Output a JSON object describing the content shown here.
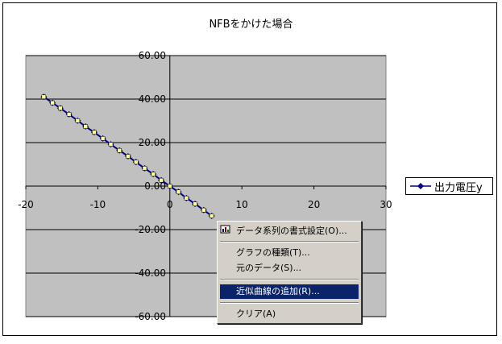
{
  "chart_data": {
    "type": "scatter",
    "title": "NFBをかけた場合",
    "xlim": [
      -20,
      30
    ],
    "ylim": [
      -60,
      60
    ],
    "x_ticks": [
      "-20",
      "-10",
      "0",
      "10",
      "20",
      "30"
    ],
    "y_ticks": [
      "60.00",
      "40.00",
      "20.00",
      "0.00",
      "-20.00",
      "-40.00",
      "-60.00"
    ],
    "grid": "horizontal major",
    "legend_placement": "right",
    "series": [
      {
        "name": "出力電圧y",
        "color": "#000080",
        "marker_color": "#ffff99",
        "x": [
          -17.5,
          -16.3,
          -15.2,
          -14.0,
          -12.8,
          -11.7,
          -10.5,
          -9.3,
          -8.2,
          -7.0,
          -5.8,
          -4.7,
          -3.5,
          -2.3,
          -1.2,
          0.0,
          1.2,
          2.3,
          3.5,
          4.7,
          5.8
        ],
        "y": [
          41.0,
          38.3,
          35.8,
          33.0,
          30.1,
          27.4,
          24.7,
          21.9,
          19.2,
          16.4,
          13.7,
          11.0,
          8.2,
          5.5,
          2.7,
          0.0,
          -2.7,
          -5.5,
          -8.2,
          -11.0,
          -13.7
        ]
      }
    ]
  },
  "legend": {
    "label": "出力電圧y"
  },
  "context_menu": {
    "items": [
      {
        "label": "データ系列の書式設定(O)...",
        "highlighted": false,
        "icon": "format-series-icon"
      },
      {
        "label": "グラフの種類(T)...",
        "highlighted": false
      },
      {
        "label": "元のデータ(S)...",
        "highlighted": false
      },
      {
        "label": "近似曲線の追加(R)...",
        "highlighted": true
      },
      {
        "label": "クリア(A)",
        "highlighted": false
      }
    ],
    "colors": {
      "face": "#d4d0c8",
      "highlight": "#0a246a"
    }
  },
  "colors": {
    "plot_area": "#c0c0c0",
    "series_line": "#000080",
    "marker_fill": "#ffff99"
  }
}
